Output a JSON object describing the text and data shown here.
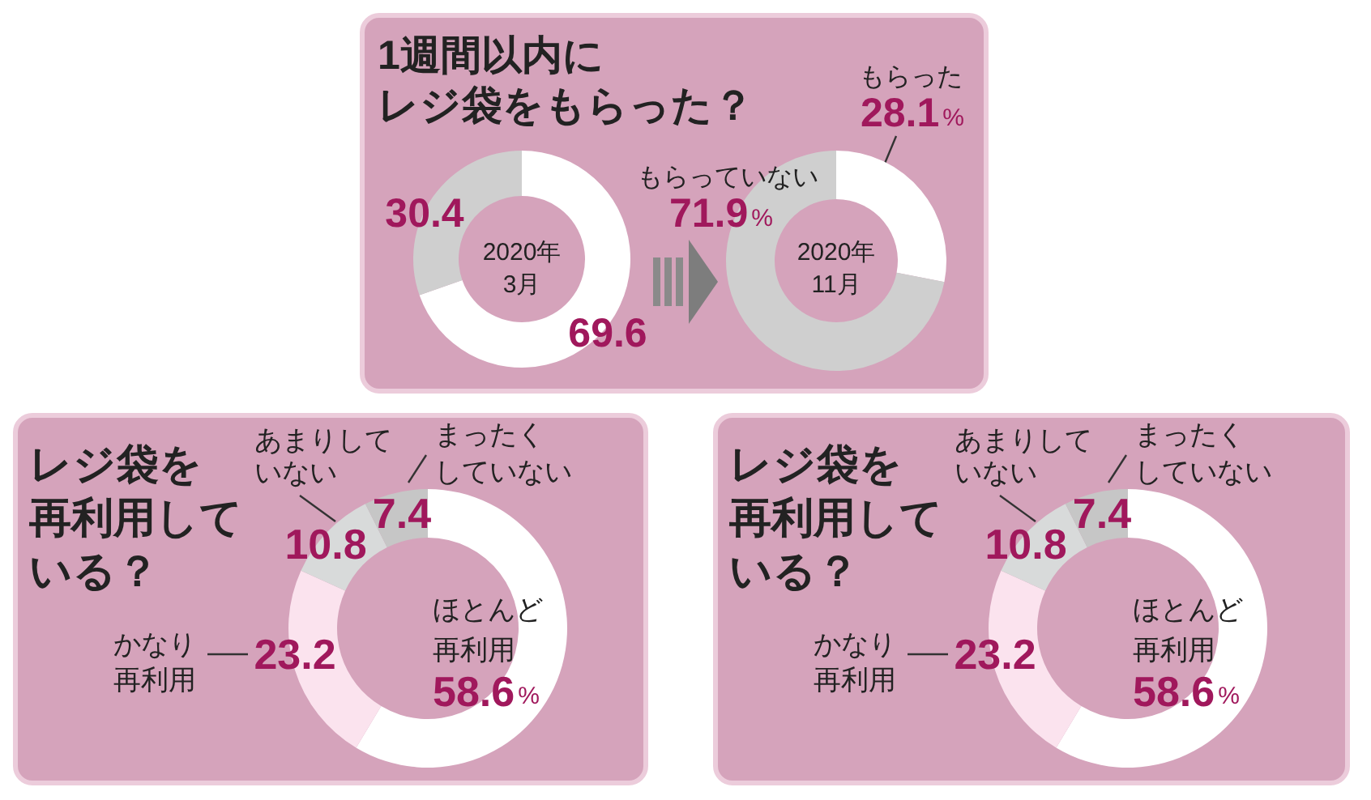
{
  "chart_data": [
    {
      "type": "donut",
      "title": "1週間以内にレジ袋をもらった？",
      "annotations": [
        "2020年3月"
      ],
      "categories": [
        null,
        null
      ],
      "values": [
        69.6,
        30.4
      ],
      "colors": [
        "#ffffff",
        "#cfcfcf"
      ],
      "value_labels": [
        "69.6",
        "30.4"
      ]
    },
    {
      "type": "donut",
      "annotations": [
        "2020年11月"
      ],
      "categories": [
        "もらった",
        "もらっていない"
      ],
      "values": [
        28.1,
        71.9
      ],
      "colors": [
        "#ffffff",
        "#cfcfcf"
      ],
      "value_labels": [
        "28.1%",
        "71.9%"
      ]
    },
    {
      "type": "donut",
      "title": "レジ袋を再利用している？",
      "categories": [
        "ほとんど再利用",
        "かなり再利用",
        "あまりしていない",
        "まったくしていない"
      ],
      "values": [
        58.6,
        23.2,
        10.8,
        7.4
      ],
      "colors": [
        "#ffffff",
        "#fbe3ee",
        "#d8dada",
        "#c6c6c6"
      ],
      "value_labels": [
        "58.6%",
        "23.2",
        "10.8",
        "7.4"
      ]
    },
    {
      "type": "donut",
      "title": "レジ袋を再利用している？",
      "categories": [
        "ほとんど再利用",
        "かなり再利用",
        "あまりしていない",
        "まったくしていない"
      ],
      "values": [
        58.6,
        23.2,
        10.8,
        7.4
      ],
      "colors": [
        "#ffffff",
        "#fbe3ee",
        "#d8dada",
        "#c6c6c6"
      ],
      "value_labels": [
        "58.6%",
        "23.2",
        "10.8",
        "7.4"
      ]
    }
  ]
}
